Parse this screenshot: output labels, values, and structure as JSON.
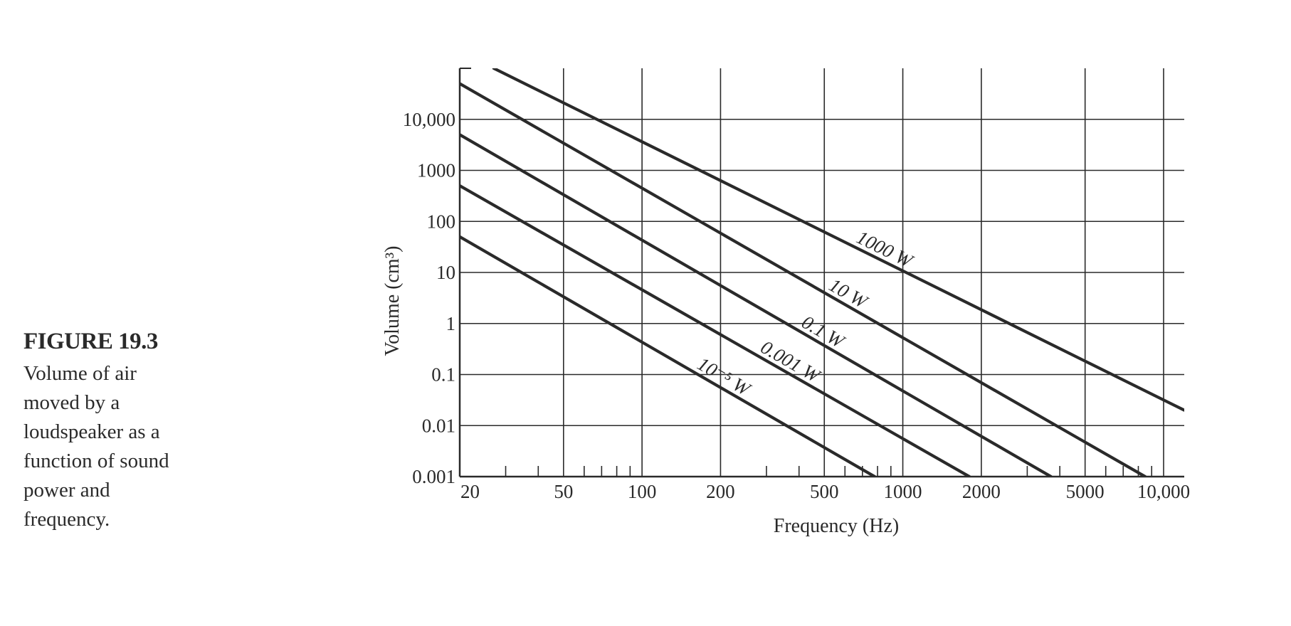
{
  "caption": {
    "title": "FIGURE 19.3",
    "lines": [
      "Volume of air",
      "moved by a",
      "loudspeaker as a",
      "function of sound",
      "power and",
      "frequency."
    ]
  },
  "colors": {
    "ink": "#2a2a2a",
    "background": "#ffffff"
  },
  "chart_data": {
    "type": "line",
    "title": "",
    "xlabel": "Frequency (Hz)",
    "ylabel": "Volume (cm³)",
    "x_scale": "log",
    "y_scale": "log",
    "xlim": [
      20,
      12000
    ],
    "ylim": [
      0.001,
      100000
    ],
    "x_ticks": [
      {
        "value": 20,
        "label": "20"
      },
      {
        "value": 50,
        "label": "50"
      },
      {
        "value": 100,
        "label": "100"
      },
      {
        "value": 200,
        "label": "200"
      },
      {
        "value": 500,
        "label": "500"
      },
      {
        "value": 1000,
        "label": "1000"
      },
      {
        "value": 2000,
        "label": "2000"
      },
      {
        "value": 5000,
        "label": "5000"
      },
      {
        "value": 10000,
        "label": "10,000"
      }
    ],
    "x_minor_ticks": [
      30,
      40,
      60,
      70,
      80,
      90,
      300,
      400,
      600,
      700,
      800,
      900,
      3000,
      4000,
      6000,
      7000,
      8000,
      9000
    ],
    "y_ticks": [
      {
        "value": 0.001,
        "label": "0.001"
      },
      {
        "value": 0.01,
        "label": "0.01"
      },
      {
        "value": 0.1,
        "label": "0.1"
      },
      {
        "value": 1,
        "label": "1"
      },
      {
        "value": 10,
        "label": "10"
      },
      {
        "value": 100,
        "label": "100"
      },
      {
        "value": 1000,
        "label": "1000"
      },
      {
        "value": 10000,
        "label": "10,000"
      }
    ],
    "grid": true,
    "series": [
      {
        "name": "1000 W",
        "label": "1000 W",
        "x": [
          27,
          12000
        ],
        "y": [
          100000,
          0.02
        ]
      },
      {
        "name": "10 W",
        "label": "10 W",
        "x": [
          20,
          8500
        ],
        "y": [
          50000,
          0.001
        ]
      },
      {
        "name": "0.1 W",
        "label": "0.1 W",
        "x": [
          20,
          3700
        ],
        "y": [
          5000,
          0.001
        ]
      },
      {
        "name": "0.001 W",
        "label": "0.001 W",
        "x": [
          20,
          1800
        ],
        "y": [
          500,
          0.001
        ]
      },
      {
        "name": "10⁻⁵ W",
        "label": "10⁻⁵ W",
        "x": [
          20,
          780
        ],
        "y": [
          50,
          0.001
        ]
      }
    ]
  }
}
